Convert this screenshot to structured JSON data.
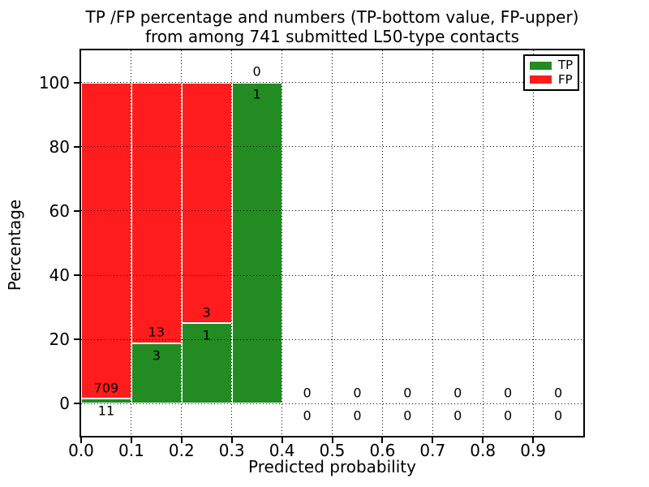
{
  "title": {
    "line1": "TP /FP percentage and numbers (TP-bottom value, FP-upper)",
    "line2": "from among 741 submitted L50-type contacts"
  },
  "chart_data": {
    "type": "bar",
    "stacked": true,
    "title": "TP /FP percentage and numbers (TP-bottom value, FP-upper) from among 741 submitted L50-type contacts",
    "total_submitted_contacts": 741,
    "xlabel": "Predicted probability",
    "ylabel": "Percentage",
    "xlim": [
      0.0,
      1.0
    ],
    "ylim": [
      -10,
      110
    ],
    "grid": true,
    "xticks": [
      0.0,
      0.1,
      0.2,
      0.3,
      0.4,
      0.5,
      0.6,
      0.7,
      0.8,
      0.9
    ],
    "xtick_labels": [
      "0.0",
      "0.1",
      "0.2",
      "0.3",
      "0.4",
      "0.5",
      "0.6",
      "0.7",
      "0.8",
      "0.9"
    ],
    "yticks": [
      0,
      20,
      40,
      60,
      80,
      100
    ],
    "ytick_labels": [
      "0",
      "20",
      "40",
      "60",
      "80",
      "100"
    ],
    "bin_width": 0.1,
    "bins": [
      {
        "x_start": 0.0,
        "x_end": 0.1,
        "tp_count": 11,
        "fp_count": 709
      },
      {
        "x_start": 0.1,
        "x_end": 0.2,
        "tp_count": 3,
        "fp_count": 13
      },
      {
        "x_start": 0.2,
        "x_end": 0.3,
        "tp_count": 1,
        "fp_count": 3
      },
      {
        "x_start": 0.3,
        "x_end": 0.4,
        "tp_count": 1,
        "fp_count": 0
      },
      {
        "x_start": 0.4,
        "x_end": 0.5,
        "tp_count": 0,
        "fp_count": 0
      },
      {
        "x_start": 0.5,
        "x_end": 0.6,
        "tp_count": 0,
        "fp_count": 0
      },
      {
        "x_start": 0.6,
        "x_end": 0.7,
        "tp_count": 0,
        "fp_count": 0
      },
      {
        "x_start": 0.7,
        "x_end": 0.8,
        "tp_count": 0,
        "fp_count": 0
      },
      {
        "x_start": 0.8,
        "x_end": 0.9,
        "tp_count": 0,
        "fp_count": 0
      },
      {
        "x_start": 0.9,
        "x_end": 1.0,
        "tp_count": 0,
        "fp_count": 0
      }
    ],
    "series": [
      {
        "name": "TP",
        "color": "#228b22",
        "counts": [
          11,
          3,
          1,
          1,
          0,
          0,
          0,
          0,
          0,
          0
        ],
        "percent_values": [
          1.53,
          18.75,
          25.0,
          100.0,
          0,
          0,
          0,
          0,
          0,
          0
        ]
      },
      {
        "name": "FP",
        "color": "#ff1c1c",
        "counts": [
          709,
          13,
          3,
          0,
          0,
          0,
          0,
          0,
          0,
          0
        ],
        "percent_values": [
          98.47,
          81.25,
          75.0,
          0.0,
          0,
          0,
          0,
          0,
          0,
          0
        ]
      }
    ],
    "legend": {
      "position": "upper right",
      "entries": [
        {
          "label": "TP",
          "color": "#228b22"
        },
        {
          "label": "FP",
          "color": "#ff1c1c"
        }
      ]
    }
  }
}
